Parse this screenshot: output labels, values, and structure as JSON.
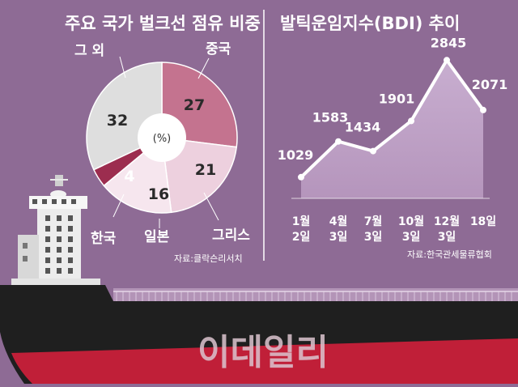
{
  "colors": {
    "background": "#8e6b95",
    "china": "#c4738f",
    "greece": "#edd0de",
    "japan": "#f6e6ee",
    "korea": "#9c2d4f",
    "others": "#dedede",
    "line": "#ffffff",
    "area": "#b595bc",
    "hull": "#1f1f1f",
    "hull_red": "#c01f38"
  },
  "watermark": "이데일리",
  "chart_data": [
    {
      "type": "pie",
      "title": "주요 국가 벌크선 점유 비중",
      "center_label": "(%)",
      "source": "자료:클락슨리서치",
      "slices": [
        {
          "label": "중국",
          "value": 27
        },
        {
          "label": "그리스",
          "value": 21
        },
        {
          "label": "일본",
          "value": 16
        },
        {
          "label": "한국",
          "value": 4
        },
        {
          "label": "그 외",
          "value": 32
        }
      ]
    },
    {
      "type": "area",
      "title": "발틱운임지수(BDI) 추이",
      "source": "자료:한국관세물류협회",
      "x": [
        "1월 2일",
        "4월 3일",
        "7월 3일",
        "10월 3일",
        "12월 3일",
        "18일"
      ],
      "x_top": [
        "1월",
        "4월",
        "7월",
        "10월",
        "12월",
        "18일"
      ],
      "x_bottom": [
        "2일",
        "3일",
        "3일",
        "3일",
        "3일",
        ""
      ],
      "values": [
        1029,
        1583,
        1434,
        1901,
        2845,
        2071
      ],
      "labels": [
        "1029",
        "1583",
        "1434",
        "1901",
        "2845",
        "2071"
      ],
      "ylim": [
        700,
        3000
      ]
    }
  ]
}
